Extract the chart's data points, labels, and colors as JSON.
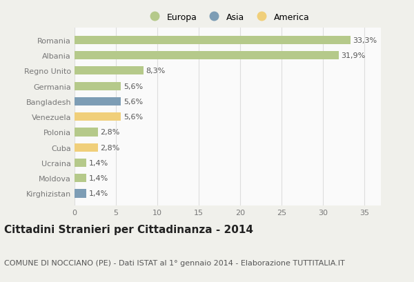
{
  "countries": [
    "Romania",
    "Albania",
    "Regno Unito",
    "Germania",
    "Bangladesh",
    "Venezuela",
    "Polonia",
    "Cuba",
    "Ucraina",
    "Moldova",
    "Kirghizistan"
  ],
  "values": [
    33.3,
    31.9,
    8.3,
    5.6,
    5.6,
    5.6,
    2.8,
    2.8,
    1.4,
    1.4,
    1.4
  ],
  "labels": [
    "33,3%",
    "31,9%",
    "8,3%",
    "5,6%",
    "5,6%",
    "5,6%",
    "2,8%",
    "2,8%",
    "1,4%",
    "1,4%",
    "1,4%"
  ],
  "colors": [
    "#b5c98a",
    "#b5c98a",
    "#b5c98a",
    "#b5c98a",
    "#7d9db5",
    "#f0cf7a",
    "#b5c98a",
    "#f0cf7a",
    "#b5c98a",
    "#b5c98a",
    "#7d9db5"
  ],
  "legend_labels": [
    "Europa",
    "Asia",
    "America"
  ],
  "legend_colors": [
    "#b5c98a",
    "#7d9db5",
    "#f0cf7a"
  ],
  "title": "Cittadini Stranieri per Cittadinanza - 2014",
  "subtitle": "COMUNE DI NOCCIANO (PE) - Dati ISTAT al 1° gennaio 2014 - Elaborazione TUTTITALIA.IT",
  "xlim": [
    0,
    37
  ],
  "xticks": [
    0,
    5,
    10,
    15,
    20,
    25,
    30,
    35
  ],
  "background_color": "#f0f0eb",
  "bar_background": "#fafafa",
  "grid_color": "#dddddd",
  "title_fontsize": 11,
  "subtitle_fontsize": 8,
  "label_fontsize": 8,
  "tick_fontsize": 8
}
